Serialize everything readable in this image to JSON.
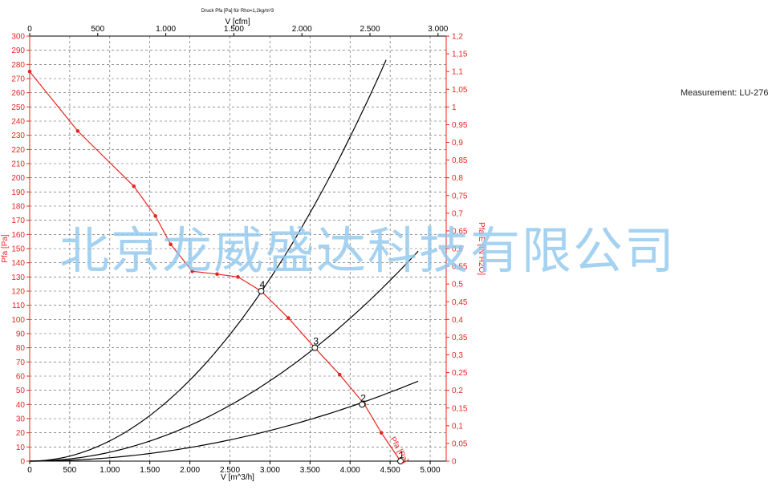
{
  "chart_data": {
    "type": "line",
    "title": "Druck Pfa [Pa] für Rho=1,2kg/m³3",
    "x": [
      0,
      600,
      1300,
      1570,
      1760,
      2030,
      2340,
      2600,
      2890,
      3230,
      3560,
      3870,
      4180,
      4390,
      4630
    ],
    "series": [
      {
        "name": "Pfa [Pa]",
        "color": "#e8251f",
        "values": [
          275,
          233,
          194,
          173,
          153,
          134,
          132,
          130,
          120,
          101,
          80,
          61,
          40,
          20,
          0
        ]
      },
      {
        "name": "",
        "color": "#000000",
        "curve": "system",
        "k": 1.43e-05,
        "xmax": 4450,
        "values": [
          0,
          5,
          24,
          35,
          44,
          59,
          78,
          97,
          120,
          149,
          181,
          214,
          250,
          276,
          283
        ]
      },
      {
        "name": "",
        "color": "#000000",
        "curve": "system",
        "k": 6.3e-06,
        "xmax": 4870,
        "values": [
          0,
          2,
          11,
          16,
          20,
          26,
          35,
          43,
          53,
          66,
          80,
          94,
          110,
          121,
          135
        ]
      },
      {
        "name": "",
        "color": "#000000",
        "curve": "system",
        "k": 2.4e-06,
        "xmax": 4880,
        "values": [
          0,
          1,
          4,
          6,
          7,
          10,
          13,
          16,
          20,
          25,
          30,
          36,
          42,
          46,
          51
        ]
      }
    ],
    "operating_points": [
      {
        "label": "4",
        "x": 2890,
        "y": 120
      },
      {
        "label": "3",
        "x": 3560,
        "y": 80
      },
      {
        "label": "2",
        "x": 4150,
        "y": 40
      },
      {
        "label": "1",
        "x": 4630,
        "y": 0
      }
    ],
    "xlabel": "V [m^3/h]",
    "xlim": [
      0,
      5200
    ],
    "xticks": [
      "0",
      "500",
      "1.000",
      "1.500",
      "2.000",
      "2.500",
      "3.000",
      "3.500",
      "4.000",
      "4.500",
      "5.000"
    ],
    "x2label": "V [cfm]",
    "x2lim": [
      0,
      3060
    ],
    "x2ticks": [
      "0",
      "500",
      "1.000",
      "1.500",
      "2.000",
      "2.500",
      "3.000"
    ],
    "ylabel": "Pfa [Pa]",
    "ylim": [
      0,
      300
    ],
    "yticks": [
      "0",
      "10",
      "20",
      "30",
      "40",
      "50",
      "60",
      "70",
      "80",
      "90",
      "100",
      "110",
      "120",
      "130",
      "140",
      "150",
      "160",
      "170",
      "180",
      "190",
      "200",
      "210",
      "220",
      "230",
      "240",
      "250",
      "260",
      "270",
      "280",
      "290",
      "300"
    ],
    "y2label": "Pfa E [IN H2O]",
    "y2lim": [
      0,
      1.2
    ],
    "y2ticks": [
      "0",
      "0,05",
      "0,1",
      "0,15",
      "0,2",
      "0,25",
      "0,3",
      "0,35",
      "0,4",
      "0,45",
      "0,5",
      "0,55",
      "0,6",
      "0,65",
      "0,7",
      "0,75",
      "0,8",
      "0,85",
      "0,9",
      "0,95",
      "1",
      "1,05",
      "1,1",
      "1,15",
      "1,2"
    ],
    "curve_label": "Pfa [Pa]",
    "grid": true
  },
  "measurement": "Measurement: LU-27623",
  "watermark": "北京龙威盛达科技有限公司"
}
